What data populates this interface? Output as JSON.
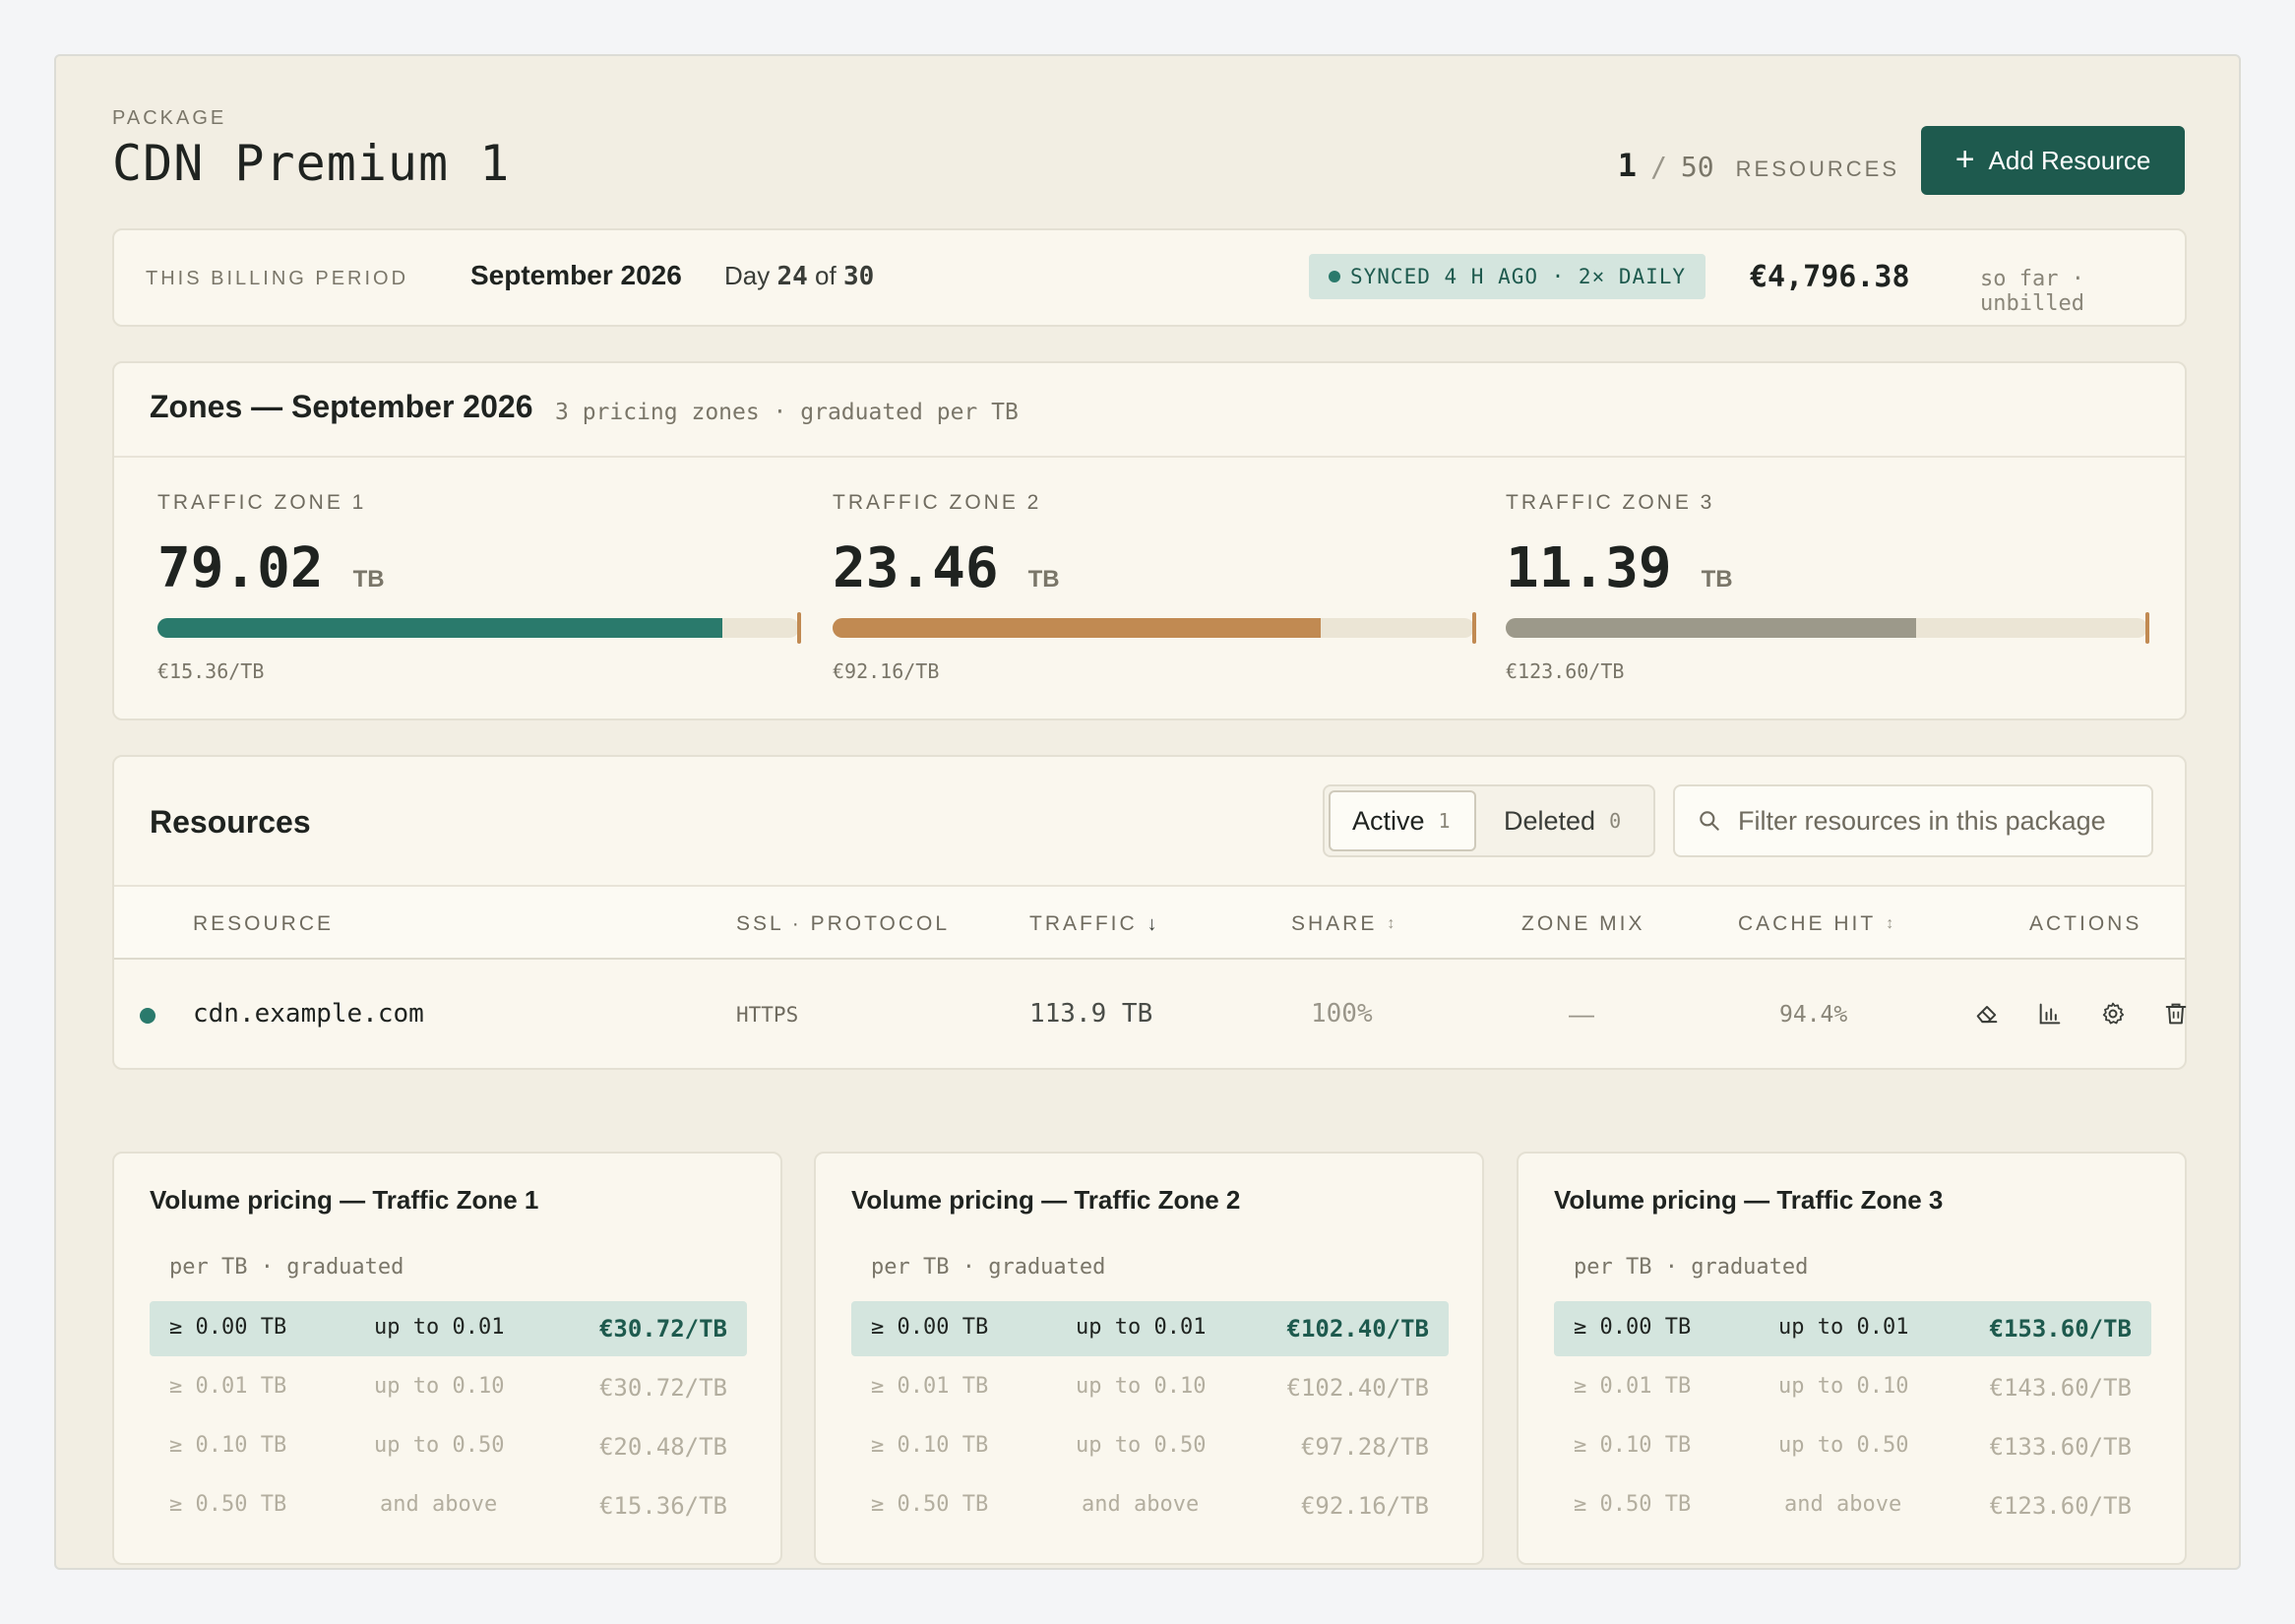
{
  "header": {
    "package_label": "PACKAGE",
    "package_name": "CDN Premium 1",
    "resources_used": "1",
    "resources_sep": "/",
    "resources_max": "50",
    "resources_label": "RESOURCES",
    "add_button": "Add Resource"
  },
  "billing": {
    "label": "THIS BILLING PERIOD",
    "month": "September 2026",
    "day_prefix": "Day",
    "day_current": "24",
    "day_of": "of",
    "day_total": "30",
    "sync_status": "SYNCED 4 H AGO · 2× DAILY",
    "amount": "€4,796.38",
    "amount_note": "so far · unbilled"
  },
  "zones": {
    "title": "Zones — September 2026",
    "subtitle": "3 pricing zones · graduated per TB",
    "items": [
      {
        "label": "TRAFFIC ZONE 1",
        "value": "79.02",
        "unit": "TB",
        "rate": "€15.36/TB",
        "fill_fraction": 0.88,
        "color": "#2a7a6c"
      },
      {
        "label": "TRAFFIC ZONE 2",
        "value": "23.46",
        "unit": "TB",
        "rate": "€92.16/TB",
        "fill_fraction": 0.76,
        "color": "#c18a52"
      },
      {
        "label": "TRAFFIC ZONE 3",
        "value": "11.39",
        "unit": "TB",
        "rate": "€123.60/TB",
        "fill_fraction": 0.64,
        "color": "#9c998a"
      }
    ]
  },
  "resources": {
    "title": "Resources",
    "tab_active_label": "Active",
    "tab_active_count": "1",
    "tab_deleted_label": "Deleted",
    "tab_deleted_count": "0",
    "filter_placeholder": "Filter resources in this package",
    "columns": {
      "resource": "RESOURCE",
      "ssl": "SSL · PROTOCOL",
      "traffic": "TRAFFIC",
      "share": "SHARE",
      "zone_mix": "ZONE MIX",
      "cache_hit": "CACHE HIT",
      "actions": "ACTIONS"
    },
    "rows": [
      {
        "name": "cdn.example.com",
        "protocol": "HTTPS",
        "traffic": "113.9 TB",
        "share": "100%",
        "zone_mix": "—",
        "cache_hit": "94.4%"
      }
    ]
  },
  "pricing": [
    {
      "title": "Volume pricing — Traffic Zone 1",
      "subtitle": "per TB · graduated",
      "tiers": [
        {
          "from": "≥ 0.00 TB",
          "upto": "up to 0.01",
          "price": "€30.72/TB"
        },
        {
          "from": "≥ 0.01 TB",
          "upto": "up to 0.10",
          "price": "€30.72/TB"
        },
        {
          "from": "≥ 0.10 TB",
          "upto": "up to 0.50",
          "price": "€20.48/TB"
        },
        {
          "from": "≥ 0.50 TB",
          "upto": "and above",
          "price": "€15.36/TB"
        }
      ]
    },
    {
      "title": "Volume pricing — Traffic Zone 2",
      "subtitle": "per TB · graduated",
      "tiers": [
        {
          "from": "≥ 0.00 TB",
          "upto": "up to 0.01",
          "price": "€102.40/TB"
        },
        {
          "from": "≥ 0.01 TB",
          "upto": "up to 0.10",
          "price": "€102.40/TB"
        },
        {
          "from": "≥ 0.10 TB",
          "upto": "up to 0.50",
          "price": "€97.28/TB"
        },
        {
          "from": "≥ 0.50 TB",
          "upto": "and above",
          "price": "€92.16/TB"
        }
      ]
    },
    {
      "title": "Volume pricing — Traffic Zone 3",
      "subtitle": "per TB · graduated",
      "tiers": [
        {
          "from": "≥ 0.00 TB",
          "upto": "up to 0.01",
          "price": "€153.60/TB"
        },
        {
          "from": "≥ 0.01 TB",
          "upto": "up to 0.10",
          "price": "€143.60/TB"
        },
        {
          "from": "≥ 0.10 TB",
          "upto": "up to 0.50",
          "price": "€133.60/TB"
        },
        {
          "from": "≥ 0.50 TB",
          "upto": "and above",
          "price": "€123.60/TB"
        }
      ]
    }
  ]
}
